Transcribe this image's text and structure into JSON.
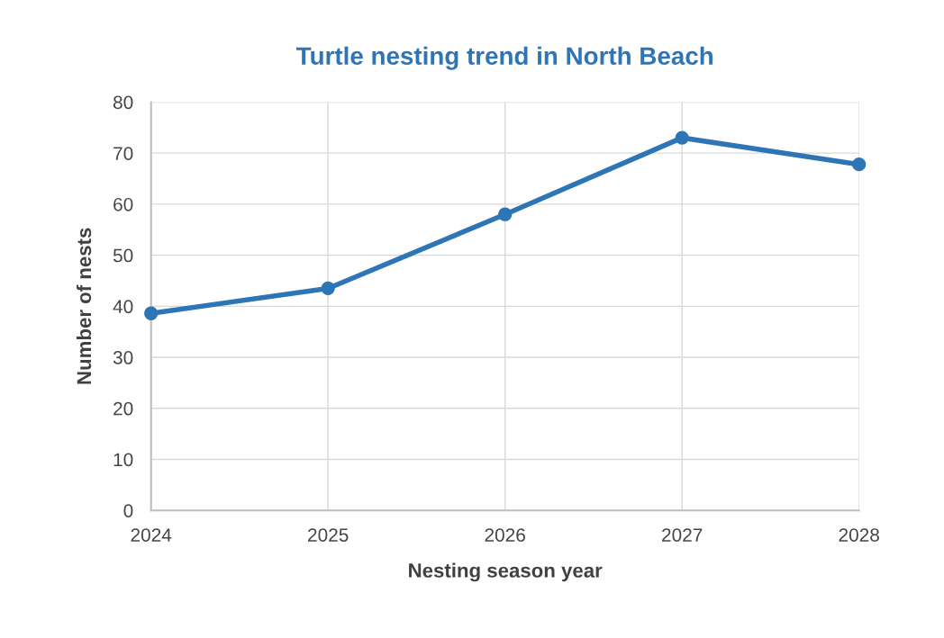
{
  "chart_data": {
    "type": "line",
    "title": "Turtle nesting trend in North Beach",
    "xlabel": "Nesting season year",
    "ylabel": "Number of nests",
    "categories": [
      "2024",
      "2025",
      "2026",
      "2027",
      "2028"
    ],
    "series": [
      {
        "color": "#2e75b6",
        "values": [
          38.6,
          43.5,
          58,
          73,
          67.8
        ]
      }
    ],
    "ylim": [
      0,
      80
    ],
    "yticks": [
      0,
      10,
      20,
      30,
      40,
      50,
      60,
      70,
      80
    ],
    "grid": true,
    "marker": "circle",
    "line_style": "solid"
  }
}
